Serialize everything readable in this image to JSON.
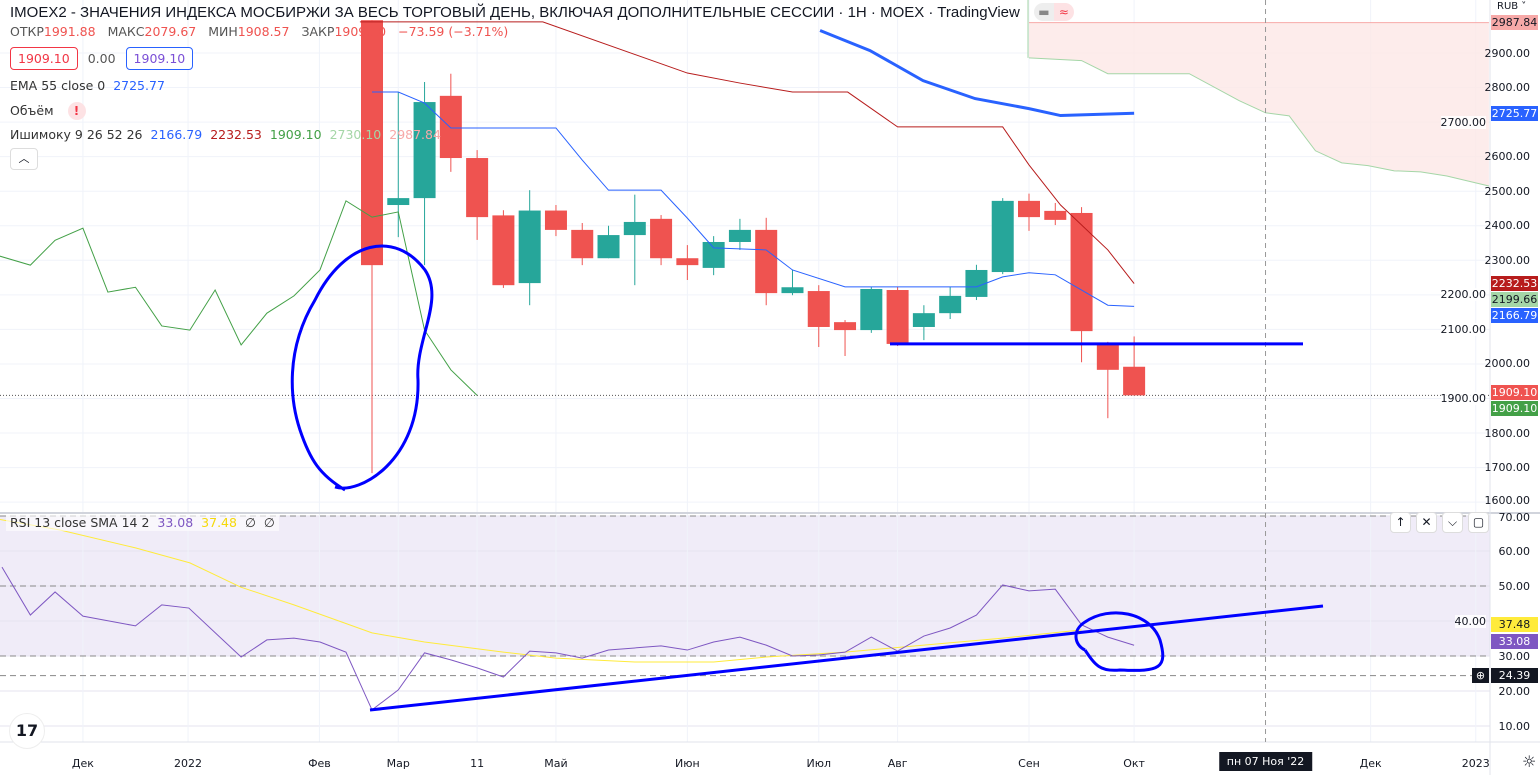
{
  "header": {
    "title": "IMOEX2 - ЗНАЧЕНИЯ ИНДЕКСА МОСБИРЖИ ЗА ВЕСЬ ТОРГОВЫЙ ДЕНЬ, ВКЛЮЧАЯ ДОПОЛНИТЕЛЬНЫЕ СЕССИИ · 1Н · MOEX · TradingView",
    "ohlc": {
      "open_label": "ОТКР",
      "open": "1991.88",
      "high_label": "МАКС",
      "high": "2079.67",
      "low_label": "МИН",
      "low": "1908.57",
      "close_label": "ЗАКР",
      "close": "1909.10",
      "change": "−73.59 (−3.71%)"
    },
    "sell_price": "1909.10",
    "spread": "0.00",
    "buy_price": "1909.10",
    "collapse_icon": "chevron-up-icon"
  },
  "indicators": {
    "ema": {
      "label": "EMA 55 close 0",
      "value": "2725.77"
    },
    "volume": {
      "label": "Объём",
      "warning": "!"
    },
    "ichimoku": {
      "label": "Ишимоку 9 26 52 26",
      "values": [
        "2166.79",
        "2232.53",
        "1909.10",
        "2730.10",
        "2987.84"
      ]
    },
    "rsi": {
      "label": "RSI 13 close SMA 14 2",
      "rsi": "33.08",
      "sma": "37.48",
      "n1": "∅",
      "n2": "∅"
    }
  },
  "price_axis": {
    "currency": "RUB ˅",
    "ticks": [
      "2900.00",
      "2800.00",
      "2700.00",
      "2600.00",
      "2500.00",
      "2400.00",
      "2300.00",
      "2200.00",
      "2100.00",
      "2000.00",
      "1900.00",
      "1800.00",
      "1700.00",
      "1600.00"
    ],
    "tags": [
      {
        "text": "2987.84",
        "price": 2987.84,
        "bg": "#f7a9a8",
        "fg": "#131722"
      },
      {
        "text": "2725.77",
        "price": 2725.77,
        "bg": "#2962ff",
        "fg": "#fff"
      },
      {
        "text": "2232.53",
        "price": 2232.53,
        "bg": "#b71c1c",
        "fg": "#fff"
      },
      {
        "text": "2199.66",
        "price": 2199.66,
        "bg": "#a5d6a7",
        "fg": "#131722"
      },
      {
        "text": "2166.79",
        "price": 2166.79,
        "bg": "#2962ff",
        "fg": "#fff"
      },
      {
        "text": "1909.10",
        "price": 1916,
        "bg": "#ef5350",
        "fg": "#fff"
      },
      {
        "text": "1909.10",
        "price": 1870,
        "bg": "#43a047",
        "fg": "#fff"
      }
    ]
  },
  "rsi_axis": {
    "ticks": [
      "70.00",
      "60.00",
      "50.00",
      "40.00",
      "30.00",
      "20.00",
      "10.00"
    ],
    "tags": [
      {
        "text": "37.48",
        "value": 38.9,
        "bg": "#ffeb3b",
        "fg": "#131722"
      },
      {
        "text": "33.08",
        "value": 34.2,
        "bg": "#7e57c2",
        "fg": "#fff"
      },
      {
        "text": "24.39",
        "value": 24.39,
        "bg": "#131722",
        "fg": "#fff"
      }
    ]
  },
  "time_axis": {
    "labels": [
      {
        "t": "Дек",
        "i": -11
      },
      {
        "t": "2022",
        "i": -7
      },
      {
        "t": "Фев",
        "i": -2
      },
      {
        "t": "Мар",
        "i": 1
      },
      {
        "t": "11",
        "i": 4
      },
      {
        "t": "Май",
        "i": 7
      },
      {
        "t": "Июн",
        "i": 12
      },
      {
        "t": "Июл",
        "i": 17
      },
      {
        "t": "Авг",
        "i": 20
      },
      {
        "t": "Сен",
        "i": 25
      },
      {
        "t": "Окт",
        "i": 29
      },
      {
        "t": "Дек",
        "i": 38
      },
      {
        "t": "2023",
        "i": 42
      }
    ],
    "crosshair": {
      "label": "пн 07 Ноя '22",
      "i": 34
    }
  },
  "colors": {
    "up": "#26a69a",
    "down": "#ef5350",
    "tenkan": "#2962ff",
    "kijun": "#b71c1c",
    "chikou": "#43a047",
    "ema": "#2962ff",
    "rsi": "#7e57c2",
    "sma": "#ffeb3b",
    "drawing": "#0000ff"
  },
  "chart_data": {
    "type": "candlestick",
    "symbol": "IMOEX2",
    "ylim": [
      1600,
      2990
    ],
    "rsi_ylim": [
      0,
      70
    ],
    "candles": [
      [
        2995,
        2995,
        1684,
        2286
      ],
      [
        2460,
        2787,
        2367,
        2480
      ],
      [
        2480,
        2816,
        2286,
        2758
      ],
      [
        2776,
        2840,
        2556,
        2596
      ],
      [
        2596,
        2619,
        2359,
        2425
      ],
      [
        2430,
        2445,
        2220,
        2228
      ],
      [
        2234,
        2503,
        2170,
        2444
      ],
      [
        2444,
        2460,
        2370,
        2388
      ],
      [
        2388,
        2408,
        2286,
        2306
      ],
      [
        2306,
        2400,
        2306,
        2373
      ],
      [
        2373,
        2490,
        2228,
        2411
      ],
      [
        2420,
        2431,
        2286,
        2306
      ],
      [
        2306,
        2344,
        2243,
        2286
      ],
      [
        2278,
        2370,
        2257,
        2353
      ],
      [
        2353,
        2420,
        2330,
        2388
      ],
      [
        2388,
        2423,
        2170,
        2205
      ],
      [
        2205,
        2272,
        2199,
        2222
      ],
      [
        2211,
        2228,
        2049,
        2107
      ],
      [
        2121,
        2127,
        2023,
        2098
      ],
      [
        2098,
        2223,
        2090,
        2217
      ],
      [
        2214,
        2223,
        2052,
        2058
      ],
      [
        2107,
        2170,
        2069,
        2147
      ],
      [
        2147,
        2223,
        2130,
        2197
      ],
      [
        2194,
        2287,
        2185,
        2272
      ],
      [
        2266,
        2480,
        2260,
        2472
      ],
      [
        2472,
        2493,
        2385,
        2425
      ],
      [
        2443,
        2466,
        2402,
        2417
      ],
      [
        2437,
        2454,
        2005,
        2095
      ],
      [
        2058,
        2064,
        1843,
        1983
      ],
      [
        1991.88,
        2079.67,
        1908.57,
        1909.1
      ]
    ],
    "ema55": [
      [
        17.05,
        2965
      ],
      [
        18.95,
        2907
      ],
      [
        20.97,
        2820
      ],
      [
        22.95,
        2768
      ],
      [
        25,
        2739
      ],
      [
        26.2,
        2719
      ],
      [
        29,
        2725.77
      ]
    ],
    "tenkan": [
      [
        0,
        2787
      ],
      [
        1,
        2787
      ],
      [
        2,
        2755
      ],
      [
        3,
        2683
      ],
      [
        7,
        2683
      ],
      [
        8,
        2590
      ],
      [
        9,
        2503
      ],
      [
        11,
        2503
      ],
      [
        12,
        2422
      ],
      [
        13,
        2336
      ],
      [
        15,
        2330
      ],
      [
        16,
        2272
      ],
      [
        18,
        2223
      ],
      [
        23,
        2223
      ],
      [
        24,
        2252
      ],
      [
        25,
        2264
      ],
      [
        26,
        2258
      ],
      [
        27,
        2214
      ],
      [
        28,
        2170
      ],
      [
        29,
        2166.79
      ]
    ],
    "kijun": [
      [
        -0.46,
        2990
      ],
      [
        6.5,
        2990
      ],
      [
        12,
        2842
      ],
      [
        14,
        2813
      ],
      [
        16,
        2787
      ],
      [
        18.1,
        2787
      ],
      [
        20,
        2686
      ],
      [
        24,
        2686
      ],
      [
        25,
        2576
      ],
      [
        26.2,
        2460
      ],
      [
        28,
        2330
      ],
      [
        29,
        2232.53
      ]
    ],
    "chikou": [
      [
        -14.16,
        2312
      ],
      [
        -13,
        2286
      ],
      [
        -12.06,
        2358
      ],
      [
        -11,
        2393
      ],
      [
        -10.05,
        2208
      ],
      [
        -9,
        2222
      ],
      [
        -8,
        2110
      ],
      [
        -6.93,
        2098
      ],
      [
        -5.97,
        2214
      ],
      [
        -4.98,
        2055
      ],
      [
        -4,
        2147
      ],
      [
        -2.97,
        2197
      ],
      [
        -1.98,
        2272
      ],
      [
        -0.99,
        2472
      ],
      [
        0,
        2425
      ],
      [
        1,
        2440
      ],
      [
        2,
        2098
      ],
      [
        3,
        1983
      ],
      [
        4,
        1909.1
      ]
    ],
    "span_a": [
      [
        25,
        2987.84
      ],
      [
        42.5,
        2987.84
      ]
    ],
    "span_b": [
      [
        25,
        2886
      ],
      [
        27,
        2878
      ],
      [
        28,
        2840
      ],
      [
        31.1,
        2840
      ],
      [
        33,
        2762
      ],
      [
        34,
        2727
      ],
      [
        34.9,
        2718
      ],
      [
        35.9,
        2617
      ],
      [
        36.9,
        2582
      ],
      [
        37.9,
        2574
      ],
      [
        38.9,
        2559
      ],
      [
        39.9,
        2556
      ],
      [
        40.9,
        2544
      ],
      [
        42.5,
        2515
      ]
    ],
    "rsi": [
      [
        -14.08,
        55.4
      ],
      [
        -13,
        41.7
      ],
      [
        -12.06,
        48.3
      ],
      [
        -11,
        41.4
      ],
      [
        -9,
        38.6
      ],
      [
        -8,
        44.6
      ],
      [
        -6.97,
        43.7
      ],
      [
        -4.98,
        29.7
      ],
      [
        -4,
        34.6
      ],
      [
        -2.97,
        35.1
      ],
      [
        -1.98,
        34
      ],
      [
        -0.99,
        31.1
      ],
      [
        0,
        14.6
      ],
      [
        1,
        20.3
      ],
      [
        2,
        30.9
      ],
      [
        3,
        28.9
      ],
      [
        4,
        26.6
      ],
      [
        5,
        24
      ],
      [
        6,
        31.4
      ],
      [
        7,
        30.9
      ],
      [
        8,
        29.4
      ],
      [
        9,
        31.7
      ],
      [
        10,
        32.3
      ],
      [
        11,
        32.9
      ],
      [
        12,
        31.7
      ],
      [
        13,
        34
      ],
      [
        14,
        35.4
      ],
      [
        15,
        33.1
      ],
      [
        16,
        30
      ],
      [
        17,
        30.3
      ],
      [
        18,
        31.1
      ],
      [
        19,
        35.4
      ],
      [
        20,
        31.4
      ],
      [
        21,
        35.7
      ],
      [
        22,
        38
      ],
      [
        23,
        41.7
      ],
      [
        24,
        50.3
      ],
      [
        25,
        48.6
      ],
      [
        26,
        49.1
      ],
      [
        27,
        38.9
      ],
      [
        28,
        35.4
      ],
      [
        29,
        33.08
      ]
    ],
    "rsi_sma": [
      [
        -14.16,
        69
      ],
      [
        -11.87,
        66
      ],
      [
        -9,
        60.9
      ],
      [
        -6.93,
        56.6
      ],
      [
        -5,
        49.7
      ],
      [
        -2.97,
        44.6
      ],
      [
        0,
        36.6
      ],
      [
        2,
        34
      ],
      [
        5,
        31.1
      ],
      [
        7,
        29.4
      ],
      [
        10,
        28.3
      ],
      [
        13,
        28.3
      ],
      [
        15,
        29.7
      ],
      [
        18,
        31.1
      ],
      [
        21,
        33.1
      ],
      [
        24,
        35.1
      ],
      [
        27,
        37.48
      ]
    ],
    "rsi_levels": [
      70,
      50,
      30,
      24.39
    ]
  }
}
